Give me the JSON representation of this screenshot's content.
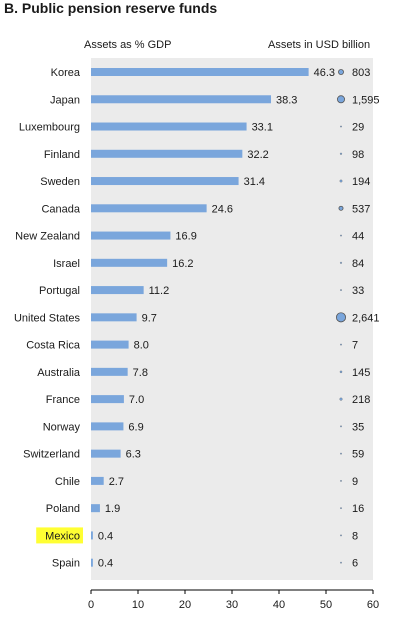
{
  "chart_data": {
    "type": "bar",
    "title": "B. Public pension reserve funds",
    "left_header": "Assets as % GDP",
    "right_header": "Assets in USD billion",
    "categories": [
      "Korea",
      "Japan",
      "Luxembourg",
      "Finland",
      "Sweden",
      "Canada",
      "New Zealand",
      "Israel",
      "Portugal",
      "United States",
      "Costa Rica",
      "Australia",
      "France",
      "Norway",
      "Switzerland",
      "Chile",
      "Poland",
      "Mexico",
      "Spain"
    ],
    "values": [
      46.3,
      38.3,
      33.1,
      32.2,
      31.4,
      24.6,
      16.9,
      16.2,
      11.2,
      9.7,
      8.0,
      7.8,
      7.0,
      6.9,
      6.3,
      2.7,
      1.9,
      0.4,
      0.4
    ],
    "value_labels": [
      "46.3",
      "38.3",
      "33.1",
      "32.2",
      "31.4",
      "24.6",
      "16.9",
      "16.2",
      "11.2",
      "9.7",
      "8.0",
      "7.8",
      "7.0",
      "6.9",
      "6.3",
      "2.7",
      "1.9",
      "0.4",
      "0.4"
    ],
    "usd_billion": [
      803,
      1595,
      29,
      98,
      194,
      537,
      44,
      84,
      33,
      2641,
      7,
      145,
      218,
      35,
      59,
      9,
      16,
      8,
      6
    ],
    "usd_labels": [
      "803",
      "1,595",
      "29",
      "98",
      "194",
      "537",
      "44",
      "84",
      "33",
      "2,641",
      "7",
      "145",
      "218",
      "35",
      "59",
      "9",
      "16",
      "8",
      "6"
    ],
    "highlighted_category": "Mexico",
    "xlim": [
      0,
      60
    ],
    "xticks": [
      "0",
      "10",
      "20",
      "30",
      "40",
      "50",
      "60"
    ],
    "grid": false,
    "colors": {
      "bar": "#7aa6dc",
      "plot_background": "#ebebeb",
      "bubble": "#7aa6dc",
      "highlight": "#ffff33"
    }
  }
}
